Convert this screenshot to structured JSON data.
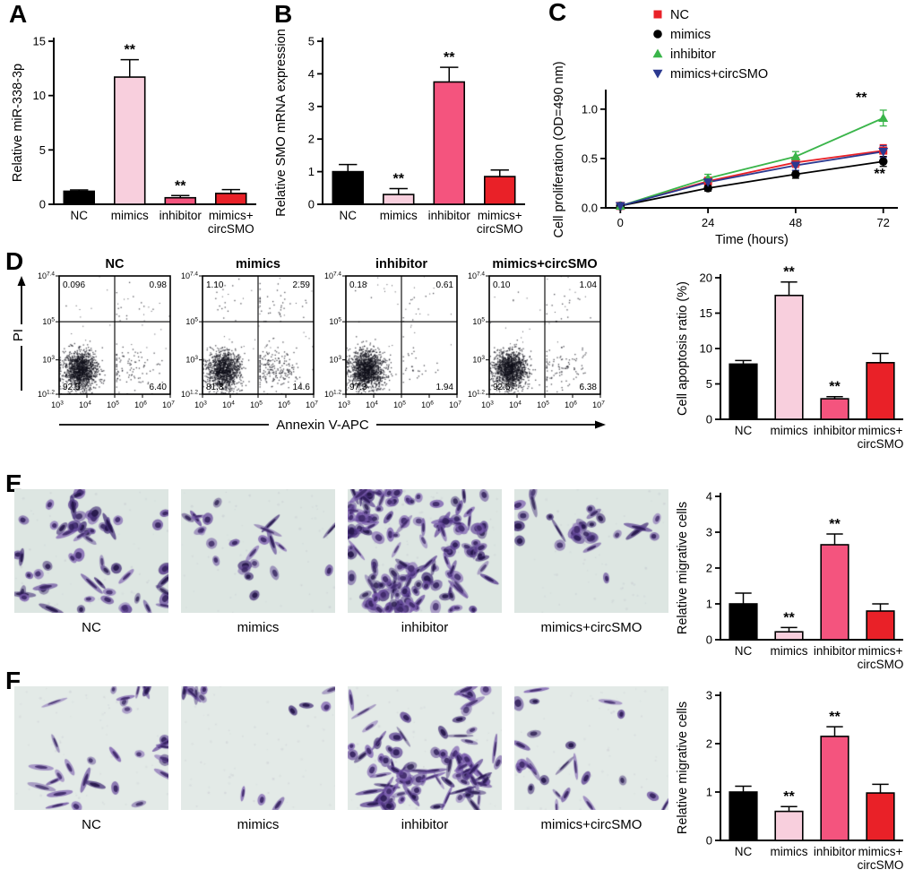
{
  "panel_labels": {
    "A": "A",
    "B": "B",
    "C": "C",
    "D": "D",
    "E": "E",
    "F": "F"
  },
  "groups": [
    "NC",
    "mimics",
    "inhibitor",
    "mimics+circSMO"
  ],
  "colors": {
    "bar_nc": "#000000",
    "bar_mimics": "#f8cfdd",
    "bar_inhibitor": "#f4547e",
    "bar_mimics_circSMO": "#e92128",
    "line_nc": "#e92128",
    "line_mimics": "#000000",
    "line_inhibitor": "#3ab54a",
    "line_mimics_circSMO": "#2b3990"
  },
  "chart_data": [
    {
      "id": "a-bar",
      "panel": "A",
      "type": "bar",
      "ylabel": "Relative miR-338-3p",
      "categories": [
        "NC",
        "mimics",
        "inhibitor",
        "mimics+\ncircSMO"
      ],
      "values": [
        1.2,
        11.7,
        0.6,
        1.0
      ],
      "errors": [
        0.12,
        1.6,
        0.2,
        0.35
      ],
      "sig": [
        "",
        "**",
        "**",
        ""
      ],
      "bar_colors": [
        "#000000",
        "#f8cfdd",
        "#f4547e",
        "#e92128"
      ],
      "yticks": [
        0,
        5,
        10,
        15
      ],
      "ylim": [
        0,
        15
      ]
    },
    {
      "id": "b-bar",
      "panel": "B",
      "type": "bar",
      "ylabel": "Relative SMO mRNA expression",
      "categories": [
        "NC",
        "mimics",
        "inhibitor",
        "mimics+\ncircSMO"
      ],
      "values": [
        1.0,
        0.3,
        3.75,
        0.85
      ],
      "errors": [
        0.22,
        0.18,
        0.45,
        0.2
      ],
      "sig": [
        "",
        "**",
        "**",
        ""
      ],
      "bar_colors": [
        "#000000",
        "#f8cfdd",
        "#f4547e",
        "#e92128"
      ],
      "yticks": [
        0,
        1,
        2,
        3,
        4,
        5
      ],
      "ylim": [
        0,
        5
      ]
    },
    {
      "id": "c-line",
      "panel": "C",
      "type": "line",
      "ylabel": "Cell proliferation (OD=490 nm)",
      "xlabel": "Time (hours)",
      "x": [
        0,
        24,
        48,
        72
      ],
      "yticks": [
        0,
        0.5,
        1
      ],
      "ytick_labels": [
        "0.0",
        "0.5",
        "1.0"
      ],
      "ylim": [
        0,
        1.18
      ],
      "series": [
        {
          "name": "NC",
          "marker": "square",
          "color": "#e92128",
          "values": [
            0.02,
            0.27,
            0.46,
            0.58
          ],
          "errors": [
            0.01,
            0.04,
            0.05,
            0.06
          ]
        },
        {
          "name": "mimics",
          "marker": "circle",
          "color": "#000000",
          "values": [
            0.02,
            0.2,
            0.34,
            0.47
          ],
          "errors": [
            0.01,
            0.03,
            0.04,
            0.05
          ]
        },
        {
          "name": "inhibitor",
          "marker": "triangle-up",
          "color": "#3ab54a",
          "values": [
            0.02,
            0.3,
            0.52,
            0.91
          ],
          "errors": [
            0.01,
            0.04,
            0.05,
            0.08
          ]
        },
        {
          "name": "mimics+circSMO",
          "marker": "triangle-down",
          "color": "#2b3990",
          "values": [
            0.02,
            0.26,
            0.43,
            0.57
          ],
          "errors": [
            0.01,
            0.04,
            0.05,
            0.06
          ]
        }
      ],
      "annotations": [
        {
          "x": 66,
          "y": 1.07,
          "text": "**"
        },
        {
          "x": 71,
          "y": 0.3,
          "text": "**"
        }
      ]
    },
    {
      "id": "d-flow",
      "panel": "D",
      "type": "flow-cytometry",
      "xlabel": "Annexin V-APC",
      "ylabel": "PI",
      "x_exponents": [
        "3",
        "4",
        "5",
        "6",
        "7"
      ],
      "y_exponents": [
        "1.2",
        "3",
        "5",
        "7.4"
      ],
      "plots": [
        {
          "label": "NC",
          "quadrants": {
            "ul": "0.096",
            "ur": "0.98",
            "ll": "92.5",
            "lr": "6.40"
          }
        },
        {
          "label": "mimics",
          "quadrants": {
            "ul": "1.10",
            "ur": "2.59",
            "ll": "81.8",
            "lr": "14.6"
          }
        },
        {
          "label": "inhibitor",
          "quadrants": {
            "ul": "0.18",
            "ur": "0.61",
            "ll": "97.3",
            "lr": "1.94"
          }
        },
        {
          "label": "mimics+circSMO",
          "quadrants": {
            "ul": "0.10",
            "ur": "1.04",
            "ll": "92.5",
            "lr": "6.38"
          }
        }
      ]
    },
    {
      "id": "d-bar",
      "panel": "D",
      "type": "bar",
      "ylabel": "Cell apoptosis ratio (%)",
      "categories": [
        "NC",
        "mimics",
        "inhibitor",
        "mimics+\ncircSMO"
      ],
      "values": [
        7.8,
        17.5,
        2.9,
        8.0
      ],
      "errors": [
        0.5,
        1.9,
        0.3,
        1.3
      ],
      "sig": [
        "",
        "**",
        "**",
        ""
      ],
      "bar_colors": [
        "#000000",
        "#f8cfdd",
        "#f4547e",
        "#e92128"
      ],
      "yticks": [
        0,
        5,
        10,
        15,
        20
      ],
      "ylim": [
        0,
        20
      ]
    },
    {
      "id": "e-img",
      "panel": "E",
      "type": "transwell-images",
      "labels": [
        "NC",
        "mimics",
        "inhibitor",
        "mimics+circSMO"
      ],
      "background": "#dde6e2",
      "densities": [
        60,
        24,
        160,
        30
      ],
      "spindle": 0.25
    },
    {
      "id": "e-bar",
      "panel": "E",
      "type": "bar",
      "ylabel": "Relative migrative cells",
      "categories": [
        "NC",
        "mimics",
        "inhibitor",
        "mimics+\ncircSMO"
      ],
      "values": [
        1.0,
        0.22,
        2.65,
        0.8
      ],
      "errors": [
        0.3,
        0.12,
        0.3,
        0.2
      ],
      "sig": [
        "",
        "**",
        "**",
        ""
      ],
      "bar_colors": [
        "#000000",
        "#f8cfdd",
        "#f4547e",
        "#e92128"
      ],
      "yticks": [
        0,
        1,
        2,
        3,
        4
      ],
      "ylim": [
        0,
        4
      ]
    },
    {
      "id": "f-img",
      "panel": "F",
      "type": "transwell-images",
      "labels": [
        "NC",
        "mimics",
        "inhibitor",
        "mimics+circSMO"
      ],
      "background": "#e3eae7",
      "densities": [
        30,
        13,
        95,
        24
      ],
      "spindle": 0.5
    },
    {
      "id": "f-bar",
      "panel": "F",
      "type": "bar",
      "ylabel": "Relative migrative cells",
      "categories": [
        "NC",
        "mimics",
        "inhibitor",
        "mimics+\ncircSMO"
      ],
      "values": [
        1.0,
        0.6,
        2.15,
        0.98
      ],
      "errors": [
        0.12,
        0.1,
        0.2,
        0.18
      ],
      "sig": [
        "",
        "**",
        "**",
        ""
      ],
      "bar_colors": [
        "#000000",
        "#f8cfdd",
        "#f4547e",
        "#e92128"
      ],
      "yticks": [
        0,
        1,
        2,
        3
      ],
      "ylim": [
        0,
        3
      ]
    }
  ]
}
